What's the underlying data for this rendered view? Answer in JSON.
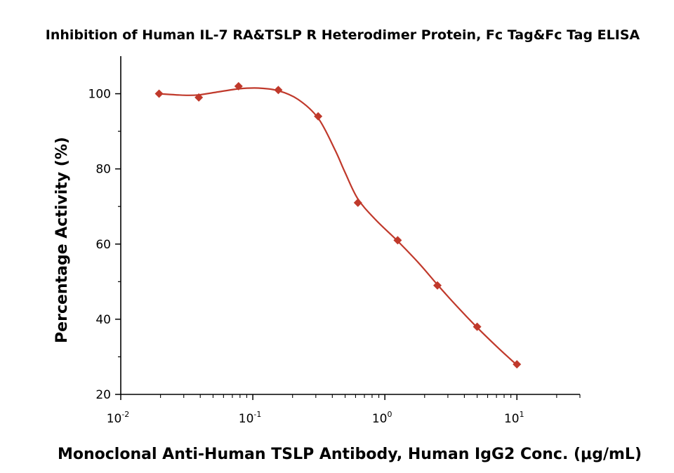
{
  "chart_data": {
    "type": "scatter",
    "title": "Inhibition of Human IL-7 RA&TSLP R Heterodimer Protein, Fc Tag&Fc Tag ELISA",
    "xlabel": "Monoclonal Anti-Human TSLP Antibody, Human IgG2 Conc. (μg/mL)",
    "ylabel": "Percentage Activity (%)",
    "x_scale": "log",
    "xlim": [
      0.01,
      30
    ],
    "ylim": [
      20,
      110
    ],
    "x_ticks": [
      0.01,
      0.1,
      1,
      10
    ],
    "x_tick_labels": [
      {
        "base": "10",
        "exp": "-2"
      },
      {
        "base": "10",
        "exp": "-1"
      },
      {
        "base": "10",
        "exp": "0"
      },
      {
        "base": "10",
        "exp": "1"
      }
    ],
    "y_ticks": [
      20,
      40,
      60,
      80,
      100
    ],
    "y_tick_labels": [
      "20",
      "40",
      "60",
      "80",
      "100"
    ],
    "grid": false,
    "legend": "none",
    "series": [
      {
        "color": "#c0392b",
        "marker": "diamond",
        "x": [
          0.0195,
          0.039,
          0.078,
          0.156,
          0.3125,
          0.625,
          1.25,
          2.5,
          5,
          10
        ],
        "y": [
          100,
          99,
          102,
          101,
          94,
          71,
          61,
          49,
          38,
          28
        ]
      }
    ],
    "fit_curve": {
      "color": "#c0392b",
      "x": [
        0.0195,
        0.03,
        0.039,
        0.055,
        0.078,
        0.11,
        0.156,
        0.22,
        0.3125,
        0.42,
        0.5,
        0.625,
        0.85,
        1.25,
        1.8,
        2.5,
        3.5,
        5,
        7,
        10
      ],
      "y": [
        100,
        99.6,
        99.7,
        100.5,
        101.3,
        101.5,
        100.8,
        98.5,
        93.5,
        85,
        79,
        72,
        66.5,
        60.8,
        55,
        49.2,
        43.5,
        37.8,
        32.8,
        27.8
      ]
    }
  }
}
